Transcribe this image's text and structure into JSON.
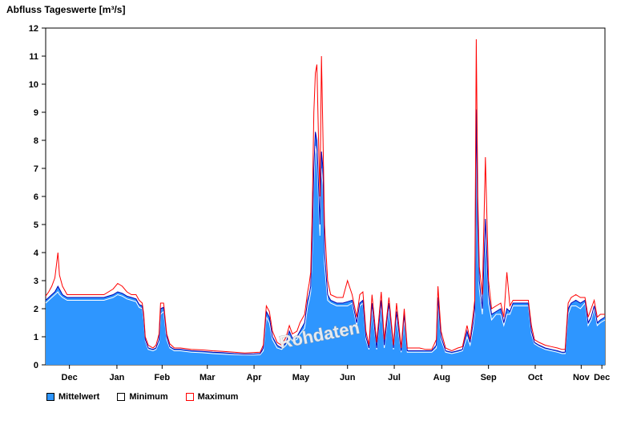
{
  "chart_data": {
    "type": "area",
    "title": "Abfluss Tageswerte [m³/s]",
    "watermark": "Rohdaten",
    "ylim": [
      0,
      12
    ],
    "y_ticks": [
      0,
      1,
      2,
      3,
      4,
      5,
      6,
      7,
      8,
      9,
      10,
      11,
      12
    ],
    "x_range_days": [
      0,
      365
    ],
    "month_ticks": [
      {
        "label": "Dec",
        "day": 15.5
      },
      {
        "label": "Jan",
        "day": 46.5
      },
      {
        "label": "Feb",
        "day": 76
      },
      {
        "label": "Mar",
        "day": 105.5
      },
      {
        "label": "Apr",
        "day": 136
      },
      {
        "label": "May",
        "day": 166.5
      },
      {
        "label": "Jun",
        "day": 197
      },
      {
        "label": "Jul",
        "day": 227.5
      },
      {
        "label": "Aug",
        "day": 258.5
      },
      {
        "label": "Sep",
        "day": 289
      },
      {
        "label": "Oct",
        "day": 319.5
      },
      {
        "label": "Nov",
        "day": 349.5
      },
      {
        "label": "Dec",
        "day": 363
      }
    ],
    "colors": {
      "mean_fill": "#2E96FF",
      "mean_stroke": "#0000B4",
      "min_stroke": "#FFFFFF",
      "max_stroke": "#FF0000",
      "frame": "#000000"
    },
    "legend": [
      {
        "label": "Mittelwert",
        "swatch_fill": "#2E96FF",
        "swatch_border": "#000000"
      },
      {
        "label": "Minimum",
        "swatch_fill": "#FFFFFF",
        "swatch_border": "#000000"
      },
      {
        "label": "Maximum",
        "swatch_fill": "#FFFFFF",
        "swatch_border": "#FF0000"
      }
    ],
    "series_meaning": "points are [day_from_Dec1, minimum, mittelwert, maximum] in m³/s",
    "points": [
      [
        0,
        2.2,
        2.3,
        2.45
      ],
      [
        2,
        2.3,
        2.4,
        2.6
      ],
      [
        4,
        2.4,
        2.5,
        2.8
      ],
      [
        6,
        2.5,
        2.6,
        3.1
      ],
      [
        8,
        2.6,
        2.8,
        4.0
      ],
      [
        9,
        2.5,
        2.7,
        3.2
      ],
      [
        11,
        2.4,
        2.5,
        2.8
      ],
      [
        14,
        2.3,
        2.4,
        2.5
      ],
      [
        18,
        2.3,
        2.4,
        2.5
      ],
      [
        24,
        2.3,
        2.4,
        2.5
      ],
      [
        31,
        2.3,
        2.4,
        2.5
      ],
      [
        38,
        2.3,
        2.4,
        2.5
      ],
      [
        44,
        2.4,
        2.5,
        2.7
      ],
      [
        47,
        2.5,
        2.6,
        2.9
      ],
      [
        50,
        2.45,
        2.55,
        2.8
      ],
      [
        53,
        2.35,
        2.45,
        2.6
      ],
      [
        56,
        2.3,
        2.4,
        2.5
      ],
      [
        59,
        2.25,
        2.35,
        2.5
      ],
      [
        61,
        2.05,
        2.15,
        2.3
      ],
      [
        63,
        2.0,
        2.1,
        2.2
      ],
      [
        64,
        1.6,
        1.7,
        1.8
      ],
      [
        65,
        0.85,
        0.9,
        1.0
      ],
      [
        67,
        0.55,
        0.6,
        0.7
      ],
      [
        70,
        0.5,
        0.55,
        0.6
      ],
      [
        72,
        0.55,
        0.6,
        0.7
      ],
      [
        74,
        0.8,
        0.9,
        1.1
      ],
      [
        75,
        1.8,
        2.0,
        2.2
      ],
      [
        77,
        1.9,
        2.05,
        2.2
      ],
      [
        79,
        0.9,
        1.0,
        1.1
      ],
      [
        81,
        0.6,
        0.65,
        0.75
      ],
      [
        84,
        0.5,
        0.55,
        0.6
      ],
      [
        88,
        0.5,
        0.55,
        0.6
      ],
      [
        95,
        0.45,
        0.5,
        0.55
      ],
      [
        102,
        0.43,
        0.48,
        0.53
      ],
      [
        109,
        0.4,
        0.45,
        0.5
      ],
      [
        116,
        0.38,
        0.43,
        0.48
      ],
      [
        123,
        0.36,
        0.4,
        0.45
      ],
      [
        130,
        0.35,
        0.38,
        0.42
      ],
      [
        136,
        0.35,
        0.39,
        0.44
      ],
      [
        140,
        0.36,
        0.4,
        0.45
      ],
      [
        142,
        0.5,
        0.6,
        0.7
      ],
      [
        144,
        1.7,
        1.9,
        2.1
      ],
      [
        146,
        1.5,
        1.7,
        1.9
      ],
      [
        148,
        0.9,
        1.0,
        1.2
      ],
      [
        151,
        0.6,
        0.7,
        0.8
      ],
      [
        154,
        0.55,
        0.6,
        0.7
      ],
      [
        157,
        0.7,
        0.8,
        1.0
      ],
      [
        159,
        1.0,
        1.2,
        1.4
      ],
      [
        161,
        0.85,
        0.95,
        1.1
      ],
      [
        164,
        0.9,
        1.0,
        1.2
      ],
      [
        166,
        1.1,
        1.2,
        1.5
      ],
      [
        169,
        1.3,
        1.5,
        1.8
      ],
      [
        171,
        2.1,
        2.3,
        2.6
      ],
      [
        172,
        2.3,
        2.5,
        2.9
      ],
      [
        173,
        2.6,
        2.8,
        3.3
      ],
      [
        174,
        4.0,
        4.5,
        5.5
      ],
      [
        175,
        6.5,
        7.0,
        9.0
      ],
      [
        176,
        7.8,
        8.3,
        10.4
      ],
      [
        177,
        7.5,
        8.0,
        10.7
      ],
      [
        178,
        6.0,
        6.5,
        8.2
      ],
      [
        179,
        4.6,
        5.0,
        6.0
      ],
      [
        180,
        7.0,
        7.6,
        11.0
      ],
      [
        181,
        6.4,
        7.0,
        8.1
      ],
      [
        182,
        3.6,
        4.0,
        5.0
      ],
      [
        184,
        2.3,
        2.5,
        3.0
      ],
      [
        186,
        2.2,
        2.3,
        2.5
      ],
      [
        190,
        2.1,
        2.2,
        2.4
      ],
      [
        194,
        2.1,
        2.2,
        2.4
      ],
      [
        197,
        2.1,
        2.25,
        3.0
      ],
      [
        200,
        2.2,
        2.3,
        2.5
      ],
      [
        203,
        1.4,
        1.5,
        1.7
      ],
      [
        205,
        2.1,
        2.2,
        2.5
      ],
      [
        207,
        2.2,
        2.3,
        2.6
      ],
      [
        209,
        0.9,
        1.0,
        1.2
      ],
      [
        211,
        0.55,
        0.6,
        0.7
      ],
      [
        213,
        2.0,
        2.2,
        2.5
      ],
      [
        216,
        0.55,
        0.6,
        0.8
      ],
      [
        219,
        2.1,
        2.3,
        2.6
      ],
      [
        221,
        0.6,
        0.7,
        0.9
      ],
      [
        224,
        2.0,
        2.2,
        2.4
      ],
      [
        227,
        0.55,
        0.6,
        0.7
      ],
      [
        229,
        1.7,
        1.9,
        2.2
      ],
      [
        232,
        0.45,
        0.5,
        0.6
      ],
      [
        234,
        1.6,
        1.8,
        2.0
      ],
      [
        236,
        0.45,
        0.5,
        0.6
      ],
      [
        240,
        0.45,
        0.5,
        0.6
      ],
      [
        244,
        0.45,
        0.5,
        0.6
      ],
      [
        248,
        0.45,
        0.5,
        0.55
      ],
      [
        252,
        0.45,
        0.5,
        0.55
      ],
      [
        255,
        0.6,
        0.7,
        0.9
      ],
      [
        256,
        2.2,
        2.4,
        2.8
      ],
      [
        258,
        0.9,
        1.0,
        1.2
      ],
      [
        261,
        0.45,
        0.5,
        0.6
      ],
      [
        265,
        0.4,
        0.45,
        0.5
      ],
      [
        269,
        0.45,
        0.5,
        0.6
      ],
      [
        272,
        0.5,
        0.55,
        0.65
      ],
      [
        275,
        1.0,
        1.2,
        1.4
      ],
      [
        277,
        0.7,
        0.8,
        0.9
      ],
      [
        279,
        1.3,
        1.5,
        1.8
      ],
      [
        280,
        1.8,
        2.0,
        2.3
      ],
      [
        281,
        8.5,
        9.1,
        11.6
      ],
      [
        282,
        4.5,
        5.0,
        6.0
      ],
      [
        283,
        2.7,
        3.0,
        3.5
      ],
      [
        285,
        1.8,
        2.0,
        2.5
      ],
      [
        287,
        4.8,
        5.2,
        7.4
      ],
      [
        289,
        2.2,
        2.5,
        3.0
      ],
      [
        291,
        1.6,
        1.8,
        2.0
      ],
      [
        294,
        1.8,
        1.9,
        2.1
      ],
      [
        297,
        1.8,
        2.0,
        2.2
      ],
      [
        299,
        1.4,
        1.5,
        1.7
      ],
      [
        301,
        1.8,
        2.0,
        3.3
      ],
      [
        303,
        1.8,
        1.9,
        2.1
      ],
      [
        305,
        2.1,
        2.2,
        2.3
      ],
      [
        309,
        2.1,
        2.2,
        2.3
      ],
      [
        313,
        2.1,
        2.2,
        2.3
      ],
      [
        315,
        2.1,
        2.2,
        2.3
      ],
      [
        317,
        1.1,
        1.2,
        1.4
      ],
      [
        319,
        0.75,
        0.8,
        0.9
      ],
      [
        322,
        0.65,
        0.7,
        0.8
      ],
      [
        326,
        0.55,
        0.6,
        0.7
      ],
      [
        330,
        0.5,
        0.55,
        0.65
      ],
      [
        334,
        0.45,
        0.5,
        0.6
      ],
      [
        337,
        0.4,
        0.45,
        0.55
      ],
      [
        339,
        0.4,
        0.45,
        0.55
      ],
      [
        341,
        1.8,
        2.0,
        2.2
      ],
      [
        343,
        2.1,
        2.2,
        2.4
      ],
      [
        346,
        2.1,
        2.3,
        2.5
      ],
      [
        349,
        2.0,
        2.2,
        2.4
      ],
      [
        352,
        2.2,
        2.3,
        2.4
      ],
      [
        354,
        1.4,
        1.5,
        1.7
      ],
      [
        356,
        1.6,
        1.7,
        2.0
      ],
      [
        358,
        2.0,
        2.1,
        2.3
      ],
      [
        360,
        1.4,
        1.5,
        1.7
      ],
      [
        362,
        1.5,
        1.6,
        1.8
      ],
      [
        365,
        1.6,
        1.7,
        1.8
      ]
    ]
  }
}
